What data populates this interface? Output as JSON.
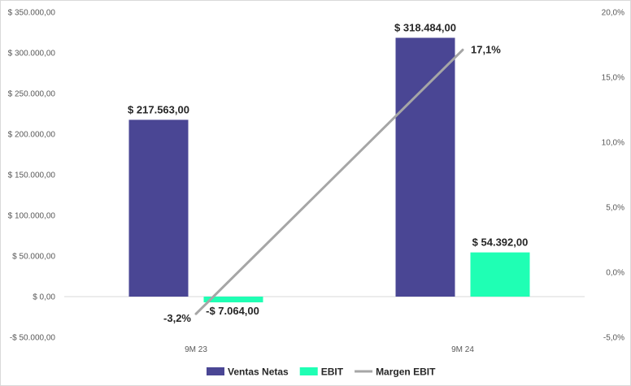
{
  "chart_data": {
    "type": "bar",
    "categories": [
      "9M 23",
      "9M 24"
    ],
    "series": [
      {
        "name": "Ventas Netas",
        "kind": "bar",
        "axis": "left",
        "color": "#4a4694",
        "values": [
          217563,
          318484
        ]
      },
      {
        "name": "EBIT",
        "kind": "bar",
        "axis": "left",
        "color": "#1fffb4",
        "values": [
          -7064,
          54392
        ]
      },
      {
        "name": "Margen EBIT",
        "kind": "line",
        "axis": "right",
        "color": "#a6a6a6",
        "values": [
          -3.2,
          17.1
        ]
      }
    ],
    "data_labels": {
      "Ventas Netas": [
        "$ 217.563,00",
        "$ 318.484,00"
      ],
      "EBIT": [
        "-$ 7.064,00",
        "$ 54.392,00"
      ],
      "Margen EBIT": [
        "-3,2%",
        "17,1%"
      ]
    },
    "y_left": {
      "min": -50000,
      "max": 350000,
      "ticks": [
        -50000,
        0,
        50000,
        100000,
        150000,
        200000,
        250000,
        300000,
        350000
      ],
      "tick_labels": [
        "-$ 50.000,00",
        "$ 0,00",
        "$ 50.000,00",
        "$ 100.000,00",
        "$ 150.000,00",
        "$ 200.000,00",
        "$ 250.000,00",
        "$ 300.000,00",
        "$ 350.000,00"
      ]
    },
    "y_right": {
      "min": -5,
      "max": 20,
      "ticks": [
        -5,
        0,
        5,
        10,
        15,
        20
      ],
      "tick_labels": [
        "-5,0%",
        "0,0%",
        "5,0%",
        "10,0%",
        "15,0%",
        "20,0%"
      ]
    },
    "grid": false,
    "legend_position": "bottom"
  }
}
